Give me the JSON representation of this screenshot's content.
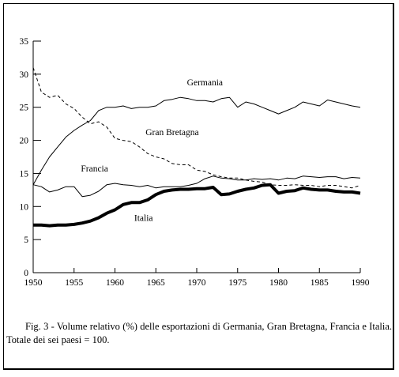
{
  "chart_data": {
    "type": "line",
    "title": "",
    "xlabel": "",
    "ylabel": "",
    "xlim": [
      1950,
      1990
    ],
    "ylim": [
      0,
      35
    ],
    "x_ticks": [
      1950,
      1955,
      1960,
      1965,
      1970,
      1975,
      1980,
      1985,
      1990
    ],
    "x_tick_labels": [
      "1950",
      "1955",
      "1960",
      "1965",
      "1970",
      "1975",
      "1980",
      "1985",
      "1990"
    ],
    "y_ticks": [
      0,
      5,
      10,
      15,
      20,
      25,
      30,
      35
    ],
    "y_tick_labels": [
      "0",
      "5",
      "10",
      "15",
      "20",
      "25",
      "30",
      "35"
    ],
    "grid": false,
    "legend": "none",
    "series": [
      {
        "name": "Germania",
        "style": "solid",
        "width": "thin",
        "color": "#000000",
        "label_at": [
          1971,
          28.3
        ],
        "x": [
          1950,
          1951,
          1952,
          1953,
          1954,
          1955,
          1956,
          1957,
          1958,
          1959,
          1960,
          1961,
          1962,
          1963,
          1964,
          1965,
          1966,
          1967,
          1968,
          1969,
          1970,
          1971,
          1972,
          1973,
          1974,
          1975,
          1976,
          1977,
          1978,
          1979,
          1980,
          1981,
          1982,
          1983,
          1984,
          1985,
          1986,
          1987,
          1988,
          1989,
          1990
        ],
        "values": [
          13.3,
          15.5,
          17.5,
          19.0,
          20.5,
          21.5,
          22.3,
          23.0,
          24.5,
          25.0,
          25.0,
          25.2,
          24.8,
          25.0,
          25.0,
          25.2,
          26.0,
          26.2,
          26.5,
          26.3,
          26.0,
          26.0,
          25.8,
          26.3,
          26.5,
          25.0,
          25.8,
          25.5,
          25.0,
          24.5,
          24.0,
          24.5,
          25.0,
          25.8,
          25.5,
          25.2,
          26.1,
          25.8,
          25.5,
          25.2,
          25.0
        ]
      },
      {
        "name": "Gran Bretagna",
        "style": "dashed",
        "width": "thin",
        "color": "#000000",
        "label_at": [
          1967,
          20.8
        ],
        "x": [
          1950,
          1951,
          1952,
          1953,
          1954,
          1955,
          1956,
          1957,
          1958,
          1959,
          1960,
          1961,
          1962,
          1963,
          1964,
          1965,
          1966,
          1967,
          1968,
          1969,
          1970,
          1971,
          1972,
          1973,
          1974,
          1975,
          1976,
          1977,
          1978,
          1979,
          1980,
          1981,
          1982,
          1983,
          1984,
          1985,
          1986,
          1987,
          1988,
          1989,
          1990
        ],
        "values": [
          31.0,
          27.3,
          26.5,
          26.8,
          25.5,
          24.8,
          23.5,
          22.5,
          22.8,
          22.0,
          20.3,
          20.0,
          19.8,
          19.0,
          18.0,
          17.5,
          17.2,
          16.5,
          16.3,
          16.3,
          15.5,
          15.3,
          14.8,
          14.5,
          14.3,
          14.3,
          14.0,
          13.8,
          13.7,
          13.3,
          13.2,
          13.2,
          13.3,
          13.2,
          13.2,
          13.0,
          13.2,
          13.2,
          13.0,
          12.8,
          13.2
        ]
      },
      {
        "name": "Francia",
        "style": "solid",
        "width": "thin",
        "color": "#000000",
        "label_at": [
          1957.5,
          15.3
        ],
        "x": [
          1950,
          1951,
          1952,
          1953,
          1954,
          1955,
          1956,
          1957,
          1958,
          1959,
          1960,
          1961,
          1962,
          1963,
          1964,
          1965,
          1966,
          1967,
          1968,
          1969,
          1970,
          1971,
          1972,
          1973,
          1974,
          1975,
          1976,
          1977,
          1978,
          1979,
          1980,
          1981,
          1982,
          1983,
          1984,
          1985,
          1986,
          1987,
          1988,
          1989,
          1990
        ],
        "values": [
          13.3,
          13.0,
          12.2,
          12.5,
          13.0,
          13.0,
          11.5,
          11.7,
          12.3,
          13.3,
          13.5,
          13.3,
          13.2,
          13.0,
          13.2,
          12.8,
          13.0,
          13.0,
          13.0,
          13.2,
          13.5,
          14.2,
          14.6,
          14.3,
          14.2,
          14.0,
          14.0,
          14.2,
          14.1,
          14.2,
          14.0,
          14.3,
          14.2,
          14.6,
          14.5,
          14.4,
          14.5,
          14.5,
          14.2,
          14.4,
          14.3
        ]
      },
      {
        "name": "Italia",
        "style": "solid",
        "width": "thick",
        "color": "#000000",
        "label_at": [
          1963.5,
          7.8
        ],
        "x": [
          1950,
          1951,
          1952,
          1953,
          1954,
          1955,
          1956,
          1957,
          1958,
          1959,
          1960,
          1961,
          1962,
          1963,
          1964,
          1965,
          1966,
          1967,
          1968,
          1969,
          1970,
          1971,
          1972,
          1973,
          1974,
          1975,
          1976,
          1977,
          1978,
          1979,
          1980,
          1981,
          1982,
          1983,
          1984,
          1985,
          1986,
          1987,
          1988,
          1989,
          1990
        ],
        "values": [
          7.2,
          7.2,
          7.1,
          7.2,
          7.2,
          7.3,
          7.5,
          7.8,
          8.3,
          9.0,
          9.5,
          10.3,
          10.6,
          10.6,
          11.0,
          11.8,
          12.3,
          12.5,
          12.6,
          12.6,
          12.7,
          12.7,
          12.9,
          11.8,
          11.9,
          12.3,
          12.6,
          12.8,
          13.2,
          13.3,
          12.0,
          12.3,
          12.4,
          12.8,
          12.6,
          12.5,
          12.5,
          12.3,
          12.2,
          12.2,
          12.0
        ]
      }
    ]
  },
  "caption": "Fig. 3 - Volume relativo (%) delle esportazioni di Germania, Gran Bretagna, Francia e Italia. Totale dei sei paesi = 100."
}
